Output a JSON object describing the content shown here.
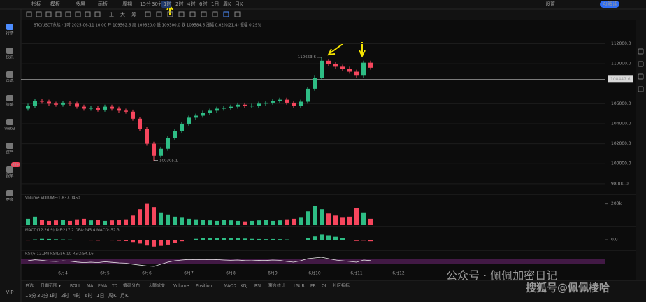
{
  "top_toolbar": {
    "menus": [
      "指标",
      "模板",
      "多屏",
      "画板",
      "周期"
    ],
    "intervals": [
      "15分",
      "30分",
      "1时",
      "2时",
      "4时",
      "6时",
      "1日",
      "周K",
      "月K"
    ],
    "active": 2,
    "right": [
      "设置",
      "AI解读"
    ]
  },
  "draw_toolbar": {
    "labels": [
      "主",
      "大",
      "筹"
    ]
  },
  "sidebar": {
    "items": [
      "行情",
      "快讯",
      "自选",
      "策略",
      "Web3",
      "资产",
      "跟单",
      "更多"
    ],
    "badge": "99+",
    "vip": "VIP"
  },
  "info_line": "BTC/USDT永续 · 1时  2025-06-11 10:00  开 109562.6  高 109820.0  低 109300.0  收 109584.6  涨幅 0.02%(21.4)  振幅 0.29%",
  "chart_data": {
    "type": "candlestick",
    "up_color": "#2ebd85",
    "down_color": "#f6465d",
    "open": [
      105500,
      105800,
      106300,
      106200,
      106000,
      105900,
      106100,
      106000,
      105700,
      105500,
      105600,
      105400,
      105700,
      105500,
      105300,
      105200,
      104500,
      103500,
      102000,
      100800,
      101500,
      102600,
      103300,
      104000,
      104600,
      104800,
      105100,
      105300,
      105500,
      105600,
      105700,
      105900,
      105800,
      105800,
      106000,
      106100,
      106300,
      106400,
      106100,
      105800,
      106200,
      107500,
      108600,
      110300,
      110000,
      109700,
      109500,
      109200,
      108800,
      110100
    ],
    "high": [
      106000,
      106500,
      106500,
      106400,
      106200,
      106300,
      106300,
      106200,
      105900,
      105800,
      105800,
      105900,
      105900,
      105700,
      105500,
      105400,
      104700,
      103700,
      102200,
      101700,
      102800,
      103500,
      104200,
      104800,
      105000,
      105300,
      105500,
      105700,
      105800,
      105900,
      106100,
      106100,
      106000,
      106200,
      106300,
      106500,
      106600,
      106600,
      106300,
      106400,
      107700,
      108800,
      110653.6,
      110500,
      110200,
      109900,
      109700,
      109400,
      110300,
      110300
    ],
    "low": [
      105300,
      105600,
      106000,
      105800,
      105700,
      105700,
      105800,
      105500,
      105300,
      105300,
      105200,
      105200,
      105300,
      105100,
      105000,
      104300,
      103300,
      101800,
      100305.1,
      100600,
      101300,
      102400,
      103100,
      103800,
      104400,
      104600,
      104900,
      105100,
      105300,
      105400,
      105500,
      105600,
      105600,
      105600,
      105800,
      105900,
      106100,
      105900,
      105600,
      105600,
      106000,
      107300,
      108400,
      109800,
      109500,
      109300,
      109000,
      108600,
      108600,
      109400
    ],
    "close": [
      105800,
      106300,
      106200,
      106000,
      105900,
      106100,
      106000,
      105700,
      105500,
      105600,
      105400,
      105700,
      105500,
      105300,
      105200,
      104500,
      103500,
      102000,
      100800,
      101500,
      102600,
      103300,
      104000,
      104600,
      104800,
      105100,
      105300,
      105500,
      105600,
      105700,
      105900,
      105800,
      105800,
      106000,
      106100,
      106300,
      106400,
      106100,
      105800,
      106200,
      107500,
      108600,
      110300,
      110000,
      109700,
      109500,
      109200,
      108800,
      110100,
      109600
    ],
    "ylim": [
      97500,
      113500
    ],
    "yticks": [
      {
        "value": 112000,
        "label": "112000.0"
      },
      {
        "value": 110000,
        "label": "110000.0"
      },
      {
        "value": 106000,
        "label": "106000.0"
      },
      {
        "value": 104000,
        "label": "104000.0"
      },
      {
        "value": 102000,
        "label": "102000.0"
      },
      {
        "value": 100000,
        "label": "100000.0"
      },
      {
        "value": 98000,
        "label": "98000.0"
      }
    ],
    "last_price": 108447.6,
    "annotations": [
      {
        "index": 42,
        "text": "110653.6",
        "value": 110653.6
      },
      {
        "index": 18,
        "text": "100305.1",
        "value": 100305.1
      }
    ],
    "dates": [
      "6月4",
      "6月5",
      "6月6",
      "6月7",
      "6月8",
      "6月9",
      "6月10",
      "6月11",
      "6月12"
    ],
    "volume": {
      "label": "Volume VOLUME:1,837.0450",
      "values": [
        60,
        80,
        50,
        40,
        45,
        50,
        40,
        55,
        60,
        45,
        50,
        40,
        45,
        50,
        55,
        90,
        150,
        200,
        170,
        120,
        100,
        80,
        70,
        60,
        55,
        50,
        45,
        40,
        50,
        45,
        40,
        35,
        40,
        45,
        50,
        40,
        45,
        55,
        60,
        70,
        130,
        180,
        150,
        110,
        90,
        70,
        80,
        160,
        120,
        60
      ],
      "ylim": [
        0,
        250
      ],
      "yticks": [
        {
          "value": 200,
          "label": "200k"
        }
      ]
    },
    "macd": {
      "label": "MACD(12,26,9) DIF:217.2 DEA:245.4 MACD:-52.3",
      "values": [
        -50,
        20,
        60,
        50,
        30,
        20,
        10,
        -10,
        -40,
        -50,
        -60,
        -40,
        -50,
        -70,
        -90,
        -150,
        -250,
        -380,
        -450,
        -400,
        -320,
        -200,
        -100,
        0,
        60,
        100,
        120,
        130,
        120,
        110,
        100,
        80,
        60,
        50,
        40,
        50,
        40,
        20,
        -10,
        0,
        100,
        220,
        350,
        300,
        200,
        100,
        0,
        -80,
        -60,
        -100
      ],
      "ylim": [
        -600,
        600
      ],
      "yticks": [
        {
          "value": 0,
          "label": "0.0"
        }
      ]
    },
    "rsi": {
      "label": "RSI(6,12,24) RSI1:56.10 RSI2:54.16",
      "color": "#e8e8e8",
      "values": [
        55,
        62,
        58,
        52,
        50,
        54,
        52,
        46,
        42,
        45,
        42,
        48,
        44,
        40,
        38,
        30,
        24,
        18,
        15,
        30,
        45,
        55,
        60,
        64,
        62,
        64,
        62,
        63,
        60,
        58,
        60,
        56,
        55,
        58,
        57,
        60,
        58,
        50,
        45,
        55,
        70,
        75,
        80,
        70,
        60,
        55,
        50,
        45,
        60,
        56
      ],
      "ylim": [
        0,
        100
      ],
      "band": [
        30,
        70
      ]
    }
  },
  "bottom_toolbar": {
    "row1": [
      "自选",
      "日期范围 ▾",
      "BOLL",
      "MA",
      "EMA",
      "TD",
      "筹码分布",
      "大额成交",
      "Volume",
      "Position",
      "MACD",
      "KDJ",
      "RSI",
      "聚合统计",
      "LSUR",
      "FR",
      "OI",
      "社区指标"
    ],
    "row2": [
      "15分",
      "30分",
      "1时",
      "2时",
      "4时",
      "6时",
      "1日",
      "周K",
      "月K"
    ]
  },
  "watermark": {
    "wechat": "公众号 · 佩佩加密日记",
    "sohu": "搜狐号@佩佩棱哈"
  }
}
